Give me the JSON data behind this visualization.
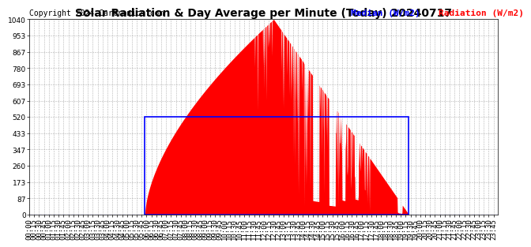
{
  "title": "Solar Radiation & Day Average per Minute (Today) 20240717",
  "copyright": "Copyright 2024 Cartronics.com",
  "legend_median": "Median (W/m2)",
  "legend_radiation": "Radiation (W/m2)",
  "ymin": 0.0,
  "ymax": 1040.0,
  "yticks": [
    0.0,
    86.7,
    173.3,
    260.0,
    346.7,
    433.3,
    520.0,
    606.7,
    693.3,
    780.0,
    866.7,
    953.3,
    1040.0
  ],
  "median_value": 520.0,
  "sunrise_minutes": 355,
  "sunset_minutes": 1165,
  "peak_minutes": 750,
  "peak_value": 1040.0,
  "bar_color": "#ff0000",
  "median_color": "#0000ff",
  "grid_color": "#aaaaaa",
  "background_color": "#ffffff",
  "title_fontsize": 10,
  "tick_fontsize": 6.5,
  "copyright_fontsize": 7,
  "legend_fontsize": 8
}
